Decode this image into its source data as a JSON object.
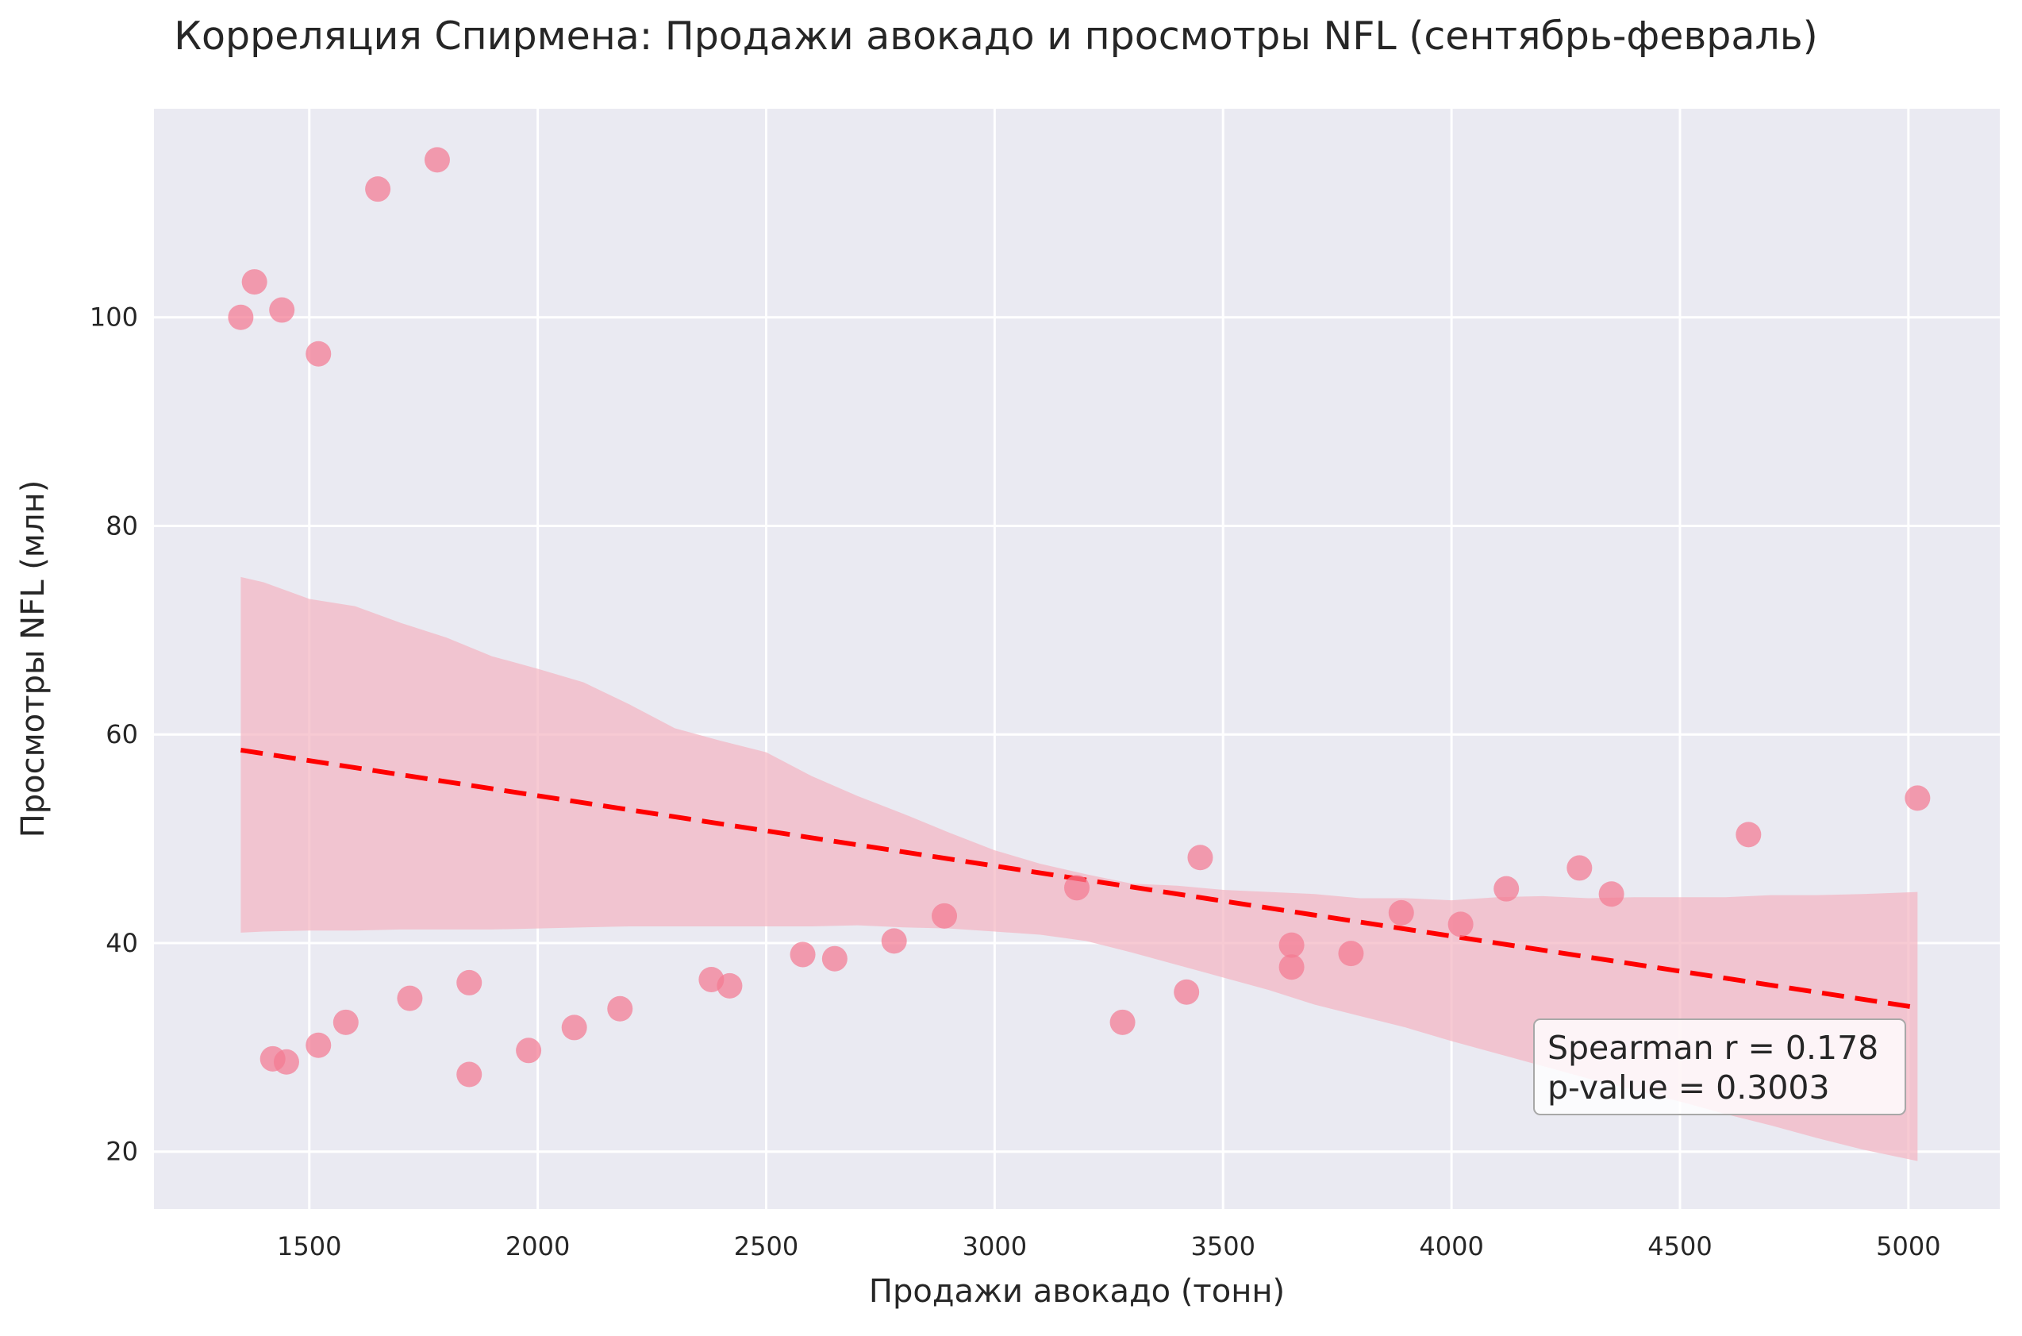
{
  "chart_data": {
    "type": "scatter",
    "title": "Корреляция Спирмена: Продажи авокадо и просмотры NFL (сентябрь-февраль)",
    "xlabel": "Продажи авокадо (тонн)",
    "ylabel": "Просмотры NFL (млн)",
    "xlim": [
      1160,
      5200
    ],
    "ylim": [
      14.5,
      120
    ],
    "xticks": [
      1500,
      2000,
      2500,
      3000,
      3500,
      4000,
      4500,
      5000
    ],
    "yticks": [
      20,
      40,
      60,
      80,
      100
    ],
    "grid": true,
    "point_color": "#f47a92",
    "regression_color": "#ff0000",
    "confidence_band_color": "#f4b6c2",
    "background_color": "#eaeaf2",
    "points": [
      {
        "x": 1350,
        "y": 100
      },
      {
        "x": 1380,
        "y": 103.4
      },
      {
        "x": 1440,
        "y": 100.7
      },
      {
        "x": 1520,
        "y": 96.5
      },
      {
        "x": 1650,
        "y": 112.3
      },
      {
        "x": 1780,
        "y": 115.1
      },
      {
        "x": 1420,
        "y": 28.9
      },
      {
        "x": 1450,
        "y": 28.6
      },
      {
        "x": 1520,
        "y": 30.2
      },
      {
        "x": 1580,
        "y": 32.4
      },
      {
        "x": 1720,
        "y": 34.7
      },
      {
        "x": 1850,
        "y": 36.2
      },
      {
        "x": 1850,
        "y": 27.4
      },
      {
        "x": 1980,
        "y": 29.7
      },
      {
        "x": 2080,
        "y": 31.9
      },
      {
        "x": 2180,
        "y": 33.7
      },
      {
        "x": 2380,
        "y": 36.5
      },
      {
        "x": 2420,
        "y": 35.9
      },
      {
        "x": 2580,
        "y": 38.9
      },
      {
        "x": 2650,
        "y": 38.5
      },
      {
        "x": 2780,
        "y": 40.2
      },
      {
        "x": 2890,
        "y": 42.6
      },
      {
        "x": 3180,
        "y": 45.3
      },
      {
        "x": 3280,
        "y": 32.4
      },
      {
        "x": 3420,
        "y": 35.3
      },
      {
        "x": 3450,
        "y": 48.2
      },
      {
        "x": 3650,
        "y": 39.8
      },
      {
        "x": 3650,
        "y": 37.7
      },
      {
        "x": 3780,
        "y": 39
      },
      {
        "x": 3890,
        "y": 42.9
      },
      {
        "x": 4020,
        "y": 41.8
      },
      {
        "x": 4120,
        "y": 45.2
      },
      {
        "x": 4280,
        "y": 47.2
      },
      {
        "x": 4350,
        "y": 44.7
      },
      {
        "x": 4650,
        "y": 50.4
      },
      {
        "x": 5020,
        "y": 53.9
      }
    ],
    "regression_line": {
      "x": [
        1350,
        5020
      ],
      "y": [
        58.5,
        33.8
      ]
    },
    "confidence_band": {
      "x": [
        1350,
        1400,
        1500,
        1600,
        1700,
        1800,
        1900,
        2000,
        2100,
        2200,
        2300,
        2400,
        2500,
        2600,
        2700,
        2800,
        2900,
        3000,
        3100,
        3200,
        3300,
        3400,
        3500,
        3600,
        3700,
        3800,
        3900,
        4000,
        4100,
        4200,
        4300,
        4400,
        4500,
        4600,
        4700,
        4800,
        4900,
        5020
      ],
      "upper": [
        75.1,
        74.6,
        73.0,
        72.3,
        70.7,
        69.3,
        67.5,
        66.3,
        65.0,
        62.9,
        60.6,
        59.4,
        58.3,
        56.0,
        54.1,
        52.4,
        50.6,
        48.9,
        47.6,
        46.6,
        45.7,
        45.5,
        45.1,
        44.9,
        44.7,
        44.3,
        44.3,
        44.1,
        44.4,
        44.5,
        44.3,
        44.4,
        44.4,
        44.4,
        44.6,
        44.6,
        44.7,
        44.9
      ],
      "lower": [
        41.0,
        41.1,
        41.2,
        41.2,
        41.3,
        41.3,
        41.3,
        41.4,
        41.5,
        41.6,
        41.6,
        41.6,
        41.6,
        41.6,
        41.7,
        41.5,
        41.4,
        41.1,
        40.8,
        40.2,
        39.1,
        37.9,
        36.7,
        35.5,
        34.1,
        33.0,
        31.9,
        30.6,
        29.4,
        28.2,
        27.0,
        25.9,
        24.8,
        23.6,
        22.5,
        21.3,
        20.2,
        19.1
      ]
    },
    "annotation": {
      "lines": [
        "Spearman r = 0.178",
        "p-value = 0.3003"
      ],
      "position": "bottom-right"
    }
  }
}
